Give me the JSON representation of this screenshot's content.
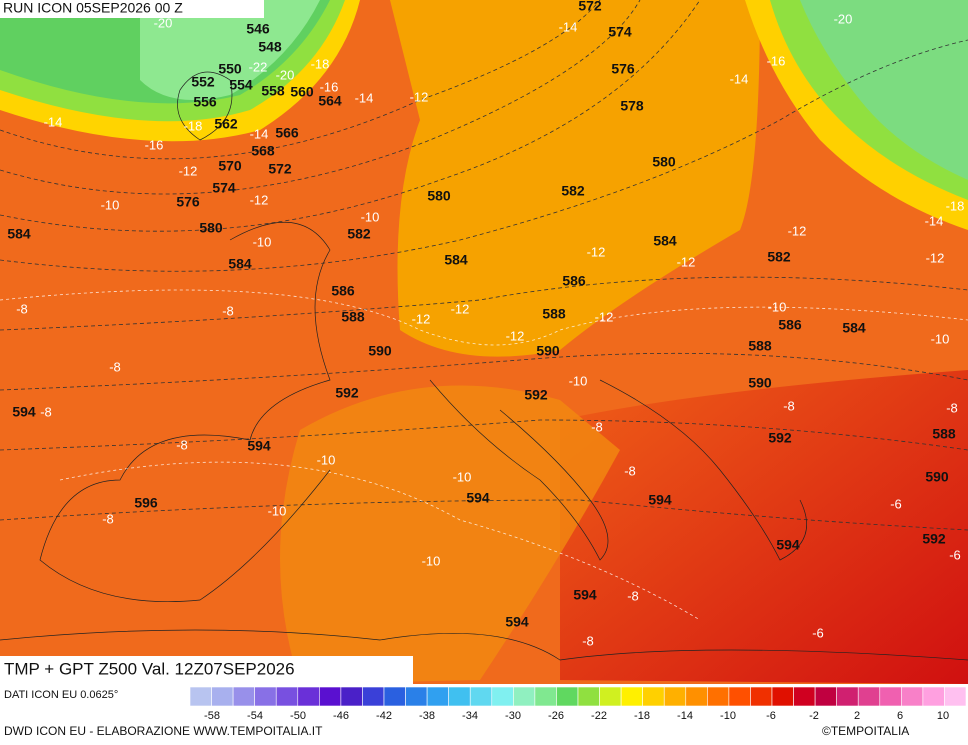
{
  "header": {
    "run": "RUN ICON 05SEP2026 00 Z"
  },
  "map": {
    "title": "TMP + GPT Z500 Val. 12Z07SEP2026",
    "geopotential_labels": [
      546,
      548,
      550,
      552,
      554,
      556,
      558,
      560,
      562,
      564,
      566,
      568,
      570,
      572,
      574,
      576,
      580,
      582,
      584,
      584,
      586,
      588,
      590,
      592,
      594,
      594,
      596,
      572,
      574,
      576,
      578,
      580,
      580,
      582,
      584,
      584,
      586,
      588,
      590,
      592,
      582,
      586,
      584,
      588,
      590,
      592,
      588,
      590,
      594,
      594,
      594,
      592,
      594,
      594
    ],
    "temperature_labels": [
      -20,
      -22,
      -20,
      -18,
      -16,
      -14,
      -12,
      -14,
      -18,
      -16,
      -14,
      -12,
      -10,
      -12,
      -10,
      -10,
      -8,
      -8,
      -8,
      -8,
      -8,
      -10,
      -10,
      -8,
      -10,
      -10,
      -12,
      -12,
      -12,
      -12,
      -12,
      -12,
      -10,
      -8,
      -8,
      -14,
      -14,
      -16,
      -20,
      -12,
      -14,
      -18,
      -12,
      -10,
      -10,
      -8,
      -8,
      -6,
      -6,
      -6,
      -8,
      -8
    ]
  },
  "legend": {
    "source": "DATI ICON EU 0.0625°",
    "colors": [
      "#b8c4f0",
      "#a8b0ee",
      "#9890ea",
      "#8870e6",
      "#7850e0",
      "#6a30d8",
      "#5a10d0",
      "#4a20c8",
      "#3a40d8",
      "#2a60e0",
      "#2a80e8",
      "#30a0f0",
      "#40c0f0",
      "#60d8f0",
      "#80f0f0",
      "#90f0c0",
      "#80e890",
      "#60d860",
      "#90e040",
      "#d0f020",
      "#fff000",
      "#ffd000",
      "#ffb000",
      "#ff9000",
      "#ff7000",
      "#ff5000",
      "#f03000",
      "#e01000",
      "#d00020",
      "#c00040",
      "#d02070",
      "#e04090",
      "#f060b0",
      "#f880c8",
      "#ffa0e0",
      "#ffc0f0"
    ],
    "ticks": [
      -58,
      -54,
      -50,
      -46,
      -42,
      -38,
      -34,
      -30,
      -26,
      -22,
      -18,
      -14,
      -10,
      -6,
      -2,
      2,
      6,
      10
    ]
  },
  "footer": {
    "credit": "DWD ICON EU - ELABORAZIONE WWW.TEMPOITALIA.IT",
    "brand": "©TEMPOITALIA"
  }
}
